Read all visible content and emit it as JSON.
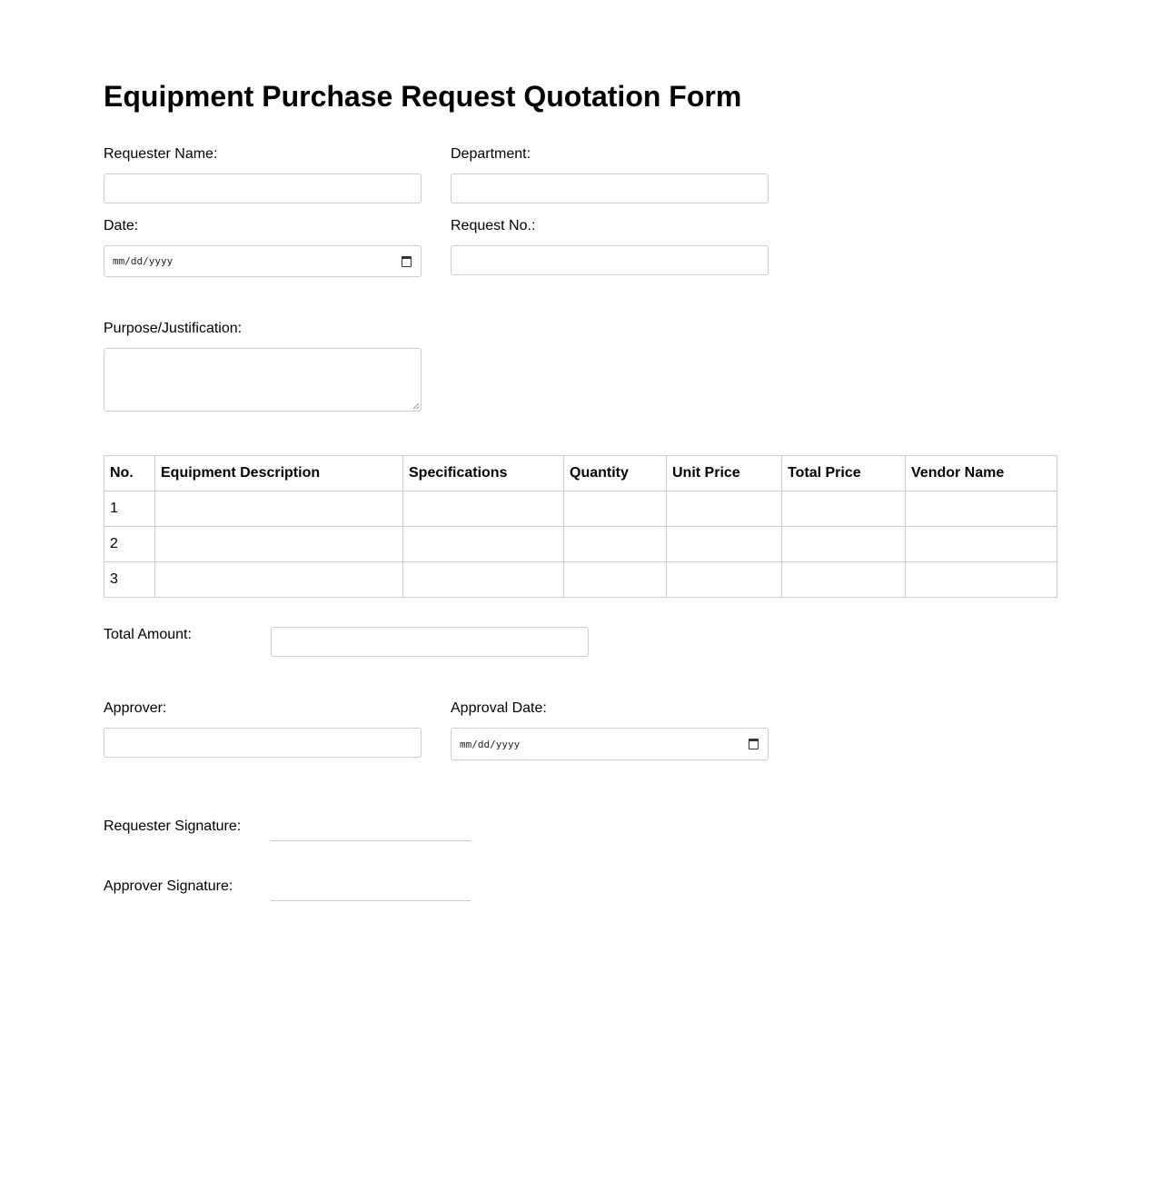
{
  "title": "Equipment Purchase Request Quotation Form",
  "fields": {
    "requester_name": "Requester Name:",
    "department": "Department:",
    "date": "Date:",
    "request_no": "Request No.:",
    "purpose": "Purpose/Justification:",
    "total_amount": "Total Amount:",
    "approver": "Approver:",
    "approval_date": "Approval Date:",
    "requester_signature": "Requester Signature:",
    "approver_signature": "Approver Signature:",
    "date_placeholder": "mm/dd/yyyy"
  },
  "table": {
    "headers": [
      "No.",
      "Equipment Description",
      "Specifications",
      "Quantity",
      "Unit Price",
      "Total Price",
      "Vendor Name"
    ],
    "rows": [
      [
        "1",
        "",
        "",
        "",
        "",
        "",
        ""
      ],
      [
        "2",
        "",
        "",
        "",
        "",
        "",
        ""
      ],
      [
        "3",
        "",
        "",
        "",
        "",
        "",
        ""
      ]
    ]
  }
}
